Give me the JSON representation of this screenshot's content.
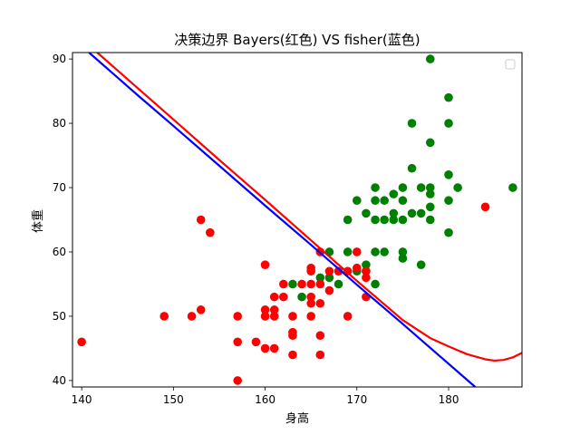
{
  "chart_data": {
    "type": "scatter",
    "title": "决策边界  Bayers(红色) VS fisher(蓝色)",
    "xlabel": "身高",
    "ylabel": "体重",
    "xlim": [
      139,
      188
    ],
    "ylim": [
      39,
      91
    ],
    "xticks": [
      140,
      150,
      160,
      170,
      180
    ],
    "yticks": [
      40,
      50,
      60,
      70,
      80,
      90
    ],
    "legend": {
      "placement": "top-right",
      "entries": []
    },
    "colors": {
      "red": "#ff0000",
      "green": "#008000",
      "blue": "#0000ff"
    },
    "series": [
      {
        "color": "#008000",
        "points": [
          [
            163,
            55
          ],
          [
            164,
            53
          ],
          [
            166,
            56
          ],
          [
            167,
            56
          ],
          [
            167,
            60
          ],
          [
            168,
            55
          ],
          [
            169,
            60
          ],
          [
            169,
            65
          ],
          [
            170,
            57
          ],
          [
            170,
            68
          ],
          [
            171,
            57
          ],
          [
            171,
            58
          ],
          [
            171,
            66
          ],
          [
            172,
            55
          ],
          [
            172,
            60
          ],
          [
            172,
            65
          ],
          [
            172,
            68
          ],
          [
            172,
            70
          ],
          [
            173,
            60
          ],
          [
            173,
            65
          ],
          [
            173,
            68
          ],
          [
            174,
            65
          ],
          [
            174,
            66
          ],
          [
            174,
            69
          ],
          [
            175,
            59
          ],
          [
            175,
            60
          ],
          [
            175,
            65
          ],
          [
            175,
            68
          ],
          [
            175,
            70
          ],
          [
            176,
            66
          ],
          [
            176,
            73
          ],
          [
            176,
            80
          ],
          [
            177,
            58
          ],
          [
            177,
            66
          ],
          [
            177,
            70
          ],
          [
            178,
            65
          ],
          [
            178,
            67
          ],
          [
            178,
            69
          ],
          [
            178,
            70
          ],
          [
            178,
            77
          ],
          [
            178,
            90
          ],
          [
            180,
            63
          ],
          [
            180,
            68
          ],
          [
            180,
            72
          ],
          [
            180,
            80
          ],
          [
            180,
            84
          ],
          [
            181,
            70
          ],
          [
            187,
            70
          ]
        ]
      },
      {
        "color": "#ff0000",
        "points": [
          [
            140,
            46
          ],
          [
            149,
            50
          ],
          [
            152,
            50
          ],
          [
            153,
            51
          ],
          [
            153,
            65
          ],
          [
            154,
            63
          ],
          [
            157,
            40
          ],
          [
            157,
            46
          ],
          [
            157,
            50
          ],
          [
            159,
            46
          ],
          [
            160,
            45
          ],
          [
            160,
            50
          ],
          [
            160,
            51
          ],
          [
            160,
            58
          ],
          [
            161,
            45
          ],
          [
            161,
            50
          ],
          [
            161,
            51
          ],
          [
            161,
            53
          ],
          [
            162,
            53
          ],
          [
            162,
            55
          ],
          [
            163,
            44
          ],
          [
            163,
            47
          ],
          [
            163,
            47.5
          ],
          [
            163,
            50
          ],
          [
            164,
            55
          ],
          [
            165,
            50
          ],
          [
            165,
            52
          ],
          [
            165,
            53
          ],
          [
            165,
            55
          ],
          [
            165,
            57
          ],
          [
            165,
            57.5
          ],
          [
            166,
            44
          ],
          [
            166,
            47
          ],
          [
            166,
            52
          ],
          [
            166,
            55
          ],
          [
            166,
            60
          ],
          [
            167,
            54
          ],
          [
            167,
            57
          ],
          [
            168,
            57
          ],
          [
            169,
            50
          ],
          [
            169,
            57
          ],
          [
            170,
            57.5
          ],
          [
            170,
            60
          ],
          [
            171,
            53
          ],
          [
            171,
            56
          ],
          [
            171,
            57
          ],
          [
            184,
            67
          ]
        ]
      }
    ],
    "boundaries": [
      {
        "color": "#0000ff",
        "points": [
          [
            140.8,
            91
          ],
          [
            146,
            84.5
          ],
          [
            150,
            79.6
          ],
          [
            155,
            73.4
          ],
          [
            160,
            67.2
          ],
          [
            165,
            61.1
          ],
          [
            170,
            54.9
          ],
          [
            175,
            48.8
          ],
          [
            180,
            42.6
          ],
          [
            182.9,
            39
          ]
        ]
      },
      {
        "color": "#ff0000",
        "points": [
          [
            141.7,
            91
          ],
          [
            146,
            85.6
          ],
          [
            150,
            80.6
          ],
          [
            155,
            74.3
          ],
          [
            160,
            68.1
          ],
          [
            165,
            61.8
          ],
          [
            170,
            55.5
          ],
          [
            175,
            49.4
          ],
          [
            178,
            46.6
          ],
          [
            180,
            45.3
          ],
          [
            182,
            44.1
          ],
          [
            184,
            43.3
          ],
          [
            185,
            43.1
          ],
          [
            186,
            43.2
          ],
          [
            187,
            43.6
          ],
          [
            188,
            44.3
          ]
        ]
      }
    ]
  }
}
